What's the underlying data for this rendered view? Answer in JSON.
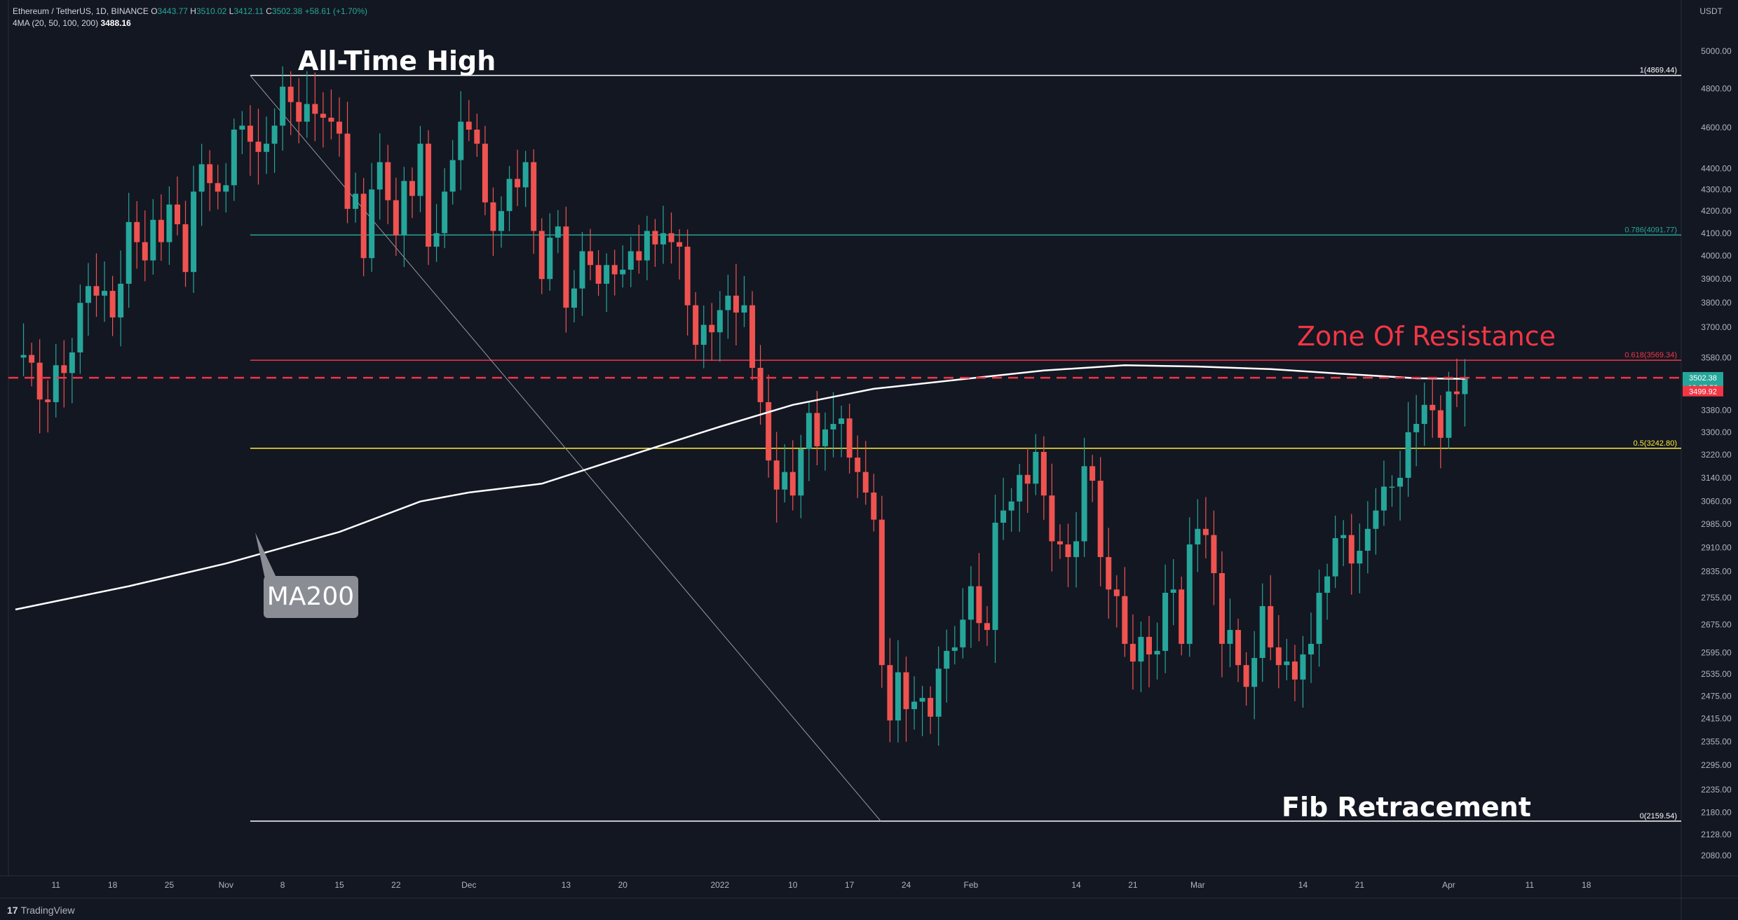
{
  "header": {
    "symbol": "Ethereum / TetherUS, 1D, BINANCE",
    "open_label": "O",
    "open": "3443.77",
    "high_label": "H",
    "high": "3510.02",
    "low_label": "L",
    "low": "3412.11",
    "close_label": "C",
    "close": "3502.38",
    "change": "+58.61 (+1.70%)",
    "ma_label": "4MA (20, 50, 100, 200)",
    "ma_value": "3488.16"
  },
  "currency": "USDT",
  "brand": "TradingView",
  "colors": {
    "background": "#131722",
    "up": "#26a69a",
    "down": "#ef5350",
    "fib_786": "#26a69a",
    "fib_618": "#f23645",
    "fib_5": "#ffeb3b",
    "resistance": "#f23645",
    "ma200": "#ffffff"
  },
  "chart_data": {
    "type": "candlestick",
    "price_scale": "log",
    "ylim": [
      2050,
      5050
    ],
    "y_ticks": [
      2080,
      2128,
      2180,
      2235,
      2295,
      2355,
      2415,
      2475,
      2535,
      2595,
      2675,
      2755,
      2835,
      2910,
      2985,
      3060,
      3140,
      3220,
      3300,
      3380,
      3580,
      3700,
      3800,
      3900,
      4000,
      4100,
      4200,
      4300,
      4400,
      4600,
      4800,
      5000
    ],
    "y_tick_labels": [
      "2080.00",
      "2128.00",
      "2180.00",
      "2235.00",
      "2295.00",
      "2355.00",
      "2415.00",
      "2475.00",
      "2535.00",
      "2595.00",
      "2675.00",
      "2755.00",
      "2835.00",
      "2910.00",
      "2985.00",
      "3060.00",
      "3140.00",
      "3220.00",
      "3300.00",
      "3380.00",
      "3580.00",
      "3700.00",
      "3800.00",
      "3900.00",
      "4000.00",
      "4100.00",
      "4200.00",
      "4300.00",
      "4400.00",
      "4600.00",
      "4800.00",
      "5000.00"
    ],
    "x_range": [
      "2021-10-06",
      "2022-04-22"
    ],
    "x_ticks": [
      {
        "date": "2021-10-11",
        "label": "11"
      },
      {
        "date": "2021-10-18",
        "label": "18"
      },
      {
        "date": "2021-10-25",
        "label": "25"
      },
      {
        "date": "2021-11-01",
        "label": "Nov"
      },
      {
        "date": "2021-11-08",
        "label": "8"
      },
      {
        "date": "2021-11-15",
        "label": "15"
      },
      {
        "date": "2021-11-22",
        "label": "22"
      },
      {
        "date": "2021-12-01",
        "label": "Dec"
      },
      {
        "date": "2021-12-13",
        "label": "13"
      },
      {
        "date": "2021-12-20",
        "label": "20"
      },
      {
        "date": "2022-01-01",
        "label": "2022"
      },
      {
        "date": "2022-01-10",
        "label": "10"
      },
      {
        "date": "2022-01-17",
        "label": "17"
      },
      {
        "date": "2022-01-24",
        "label": "24"
      },
      {
        "date": "2022-02-01",
        "label": "Feb"
      },
      {
        "date": "2022-02-14",
        "label": "14"
      },
      {
        "date": "2022-02-21",
        "label": "21"
      },
      {
        "date": "2022-03-01",
        "label": "Mar"
      },
      {
        "date": "2022-03-14",
        "label": "14"
      },
      {
        "date": "2022-03-21",
        "label": "21"
      },
      {
        "date": "2022-04-01",
        "label": "Apr"
      },
      {
        "date": "2022-04-11",
        "label": "11"
      },
      {
        "date": "2022-04-18",
        "label": "18"
      }
    ],
    "close_series": [
      [
        "2021-10-06",
        3580
      ],
      [
        "2021-10-07",
        3590
      ],
      [
        "2021-10-08",
        3560
      ],
      [
        "2021-10-09",
        3420
      ],
      [
        "2021-10-10",
        3410
      ],
      [
        "2021-10-11",
        3550
      ],
      [
        "2021-10-12",
        3520
      ],
      [
        "2021-10-13",
        3600
      ],
      [
        "2021-10-14",
        3800
      ],
      [
        "2021-10-15",
        3870
      ],
      [
        "2021-10-16",
        3830
      ],
      [
        "2021-10-17",
        3850
      ],
      [
        "2021-10-18",
        3740
      ],
      [
        "2021-10-19",
        3880
      ],
      [
        "2021-10-20",
        4150
      ],
      [
        "2021-10-21",
        4060
      ],
      [
        "2021-10-22",
        3980
      ],
      [
        "2021-10-23",
        4160
      ],
      [
        "2021-10-24",
        4060
      ],
      [
        "2021-10-25",
        4230
      ],
      [
        "2021-10-26",
        4140
      ],
      [
        "2021-10-27",
        3930
      ],
      [
        "2021-10-28",
        4290
      ],
      [
        "2021-10-29",
        4420
      ],
      [
        "2021-10-30",
        4330
      ],
      [
        "2021-10-31",
        4290
      ],
      [
        "2021-11-01",
        4320
      ],
      [
        "2021-11-02",
        4590
      ],
      [
        "2021-11-03",
        4610
      ],
      [
        "2021-11-04",
        4530
      ],
      [
        "2021-11-05",
        4480
      ],
      [
        "2021-11-06",
        4520
      ],
      [
        "2021-11-07",
        4610
      ],
      [
        "2021-11-08",
        4810
      ],
      [
        "2021-11-09",
        4730
      ],
      [
        "2021-11-10",
        4630
      ],
      [
        "2021-11-11",
        4720
      ],
      [
        "2021-11-12",
        4670
      ],
      [
        "2021-11-13",
        4650
      ],
      [
        "2021-11-14",
        4630
      ],
      [
        "2021-11-15",
        4570
      ],
      [
        "2021-11-16",
        4210
      ],
      [
        "2021-11-17",
        4280
      ],
      [
        "2021-11-18",
        3990
      ],
      [
        "2021-11-19",
        4300
      ],
      [
        "2021-11-20",
        4430
      ],
      [
        "2021-11-21",
        4250
      ],
      [
        "2021-11-22",
        4090
      ],
      [
        "2021-11-23",
        4340
      ],
      [
        "2021-11-24",
        4270
      ],
      [
        "2021-11-25",
        4520
      ],
      [
        "2021-11-26",
        4040
      ],
      [
        "2021-11-27",
        4100
      ],
      [
        "2021-11-28",
        4290
      ],
      [
        "2021-11-29",
        4440
      ],
      [
        "2021-11-30",
        4630
      ],
      [
        "2021-12-01",
        4590
      ],
      [
        "2021-12-02",
        4520
      ],
      [
        "2021-12-03",
        4240
      ],
      [
        "2021-12-04",
        4110
      ],
      [
        "2021-12-05",
        4200
      ],
      [
        "2021-12-06",
        4350
      ],
      [
        "2021-12-07",
        4310
      ],
      [
        "2021-12-08",
        4430
      ],
      [
        "2021-12-09",
        4110
      ],
      [
        "2021-12-10",
        3900
      ],
      [
        "2021-12-11",
        4080
      ],
      [
        "2021-12-12",
        4130
      ],
      [
        "2021-12-13",
        3780
      ],
      [
        "2021-12-14",
        3860
      ],
      [
        "2021-12-15",
        4020
      ],
      [
        "2021-12-16",
        3960
      ],
      [
        "2021-12-17",
        3880
      ],
      [
        "2021-12-18",
        3960
      ],
      [
        "2021-12-19",
        3920
      ],
      [
        "2021-12-20",
        3940
      ],
      [
        "2021-12-21",
        4020
      ],
      [
        "2021-12-22",
        3980
      ],
      [
        "2021-12-23",
        4110
      ],
      [
        "2021-12-24",
        4050
      ],
      [
        "2021-12-25",
        4100
      ],
      [
        "2021-12-26",
        4060
      ],
      [
        "2021-12-27",
        4040
      ],
      [
        "2021-12-28",
        3790
      ],
      [
        "2021-12-29",
        3630
      ],
      [
        "2021-12-30",
        3710
      ],
      [
        "2021-12-31",
        3680
      ],
      [
        "2022-01-01",
        3770
      ],
      [
        "2022-01-02",
        3830
      ],
      [
        "2022-01-03",
        3760
      ],
      [
        "2022-01-04",
        3790
      ],
      [
        "2022-01-05",
        3540
      ],
      [
        "2022-01-06",
        3410
      ],
      [
        "2022-01-07",
        3200
      ],
      [
        "2022-01-08",
        3100
      ],
      [
        "2022-01-09",
        3160
      ],
      [
        "2022-01-10",
        3080
      ],
      [
        "2022-01-11",
        3240
      ],
      [
        "2022-01-12",
        3370
      ],
      [
        "2022-01-13",
        3250
      ],
      [
        "2022-01-14",
        3310
      ],
      [
        "2022-01-15",
        3330
      ],
      [
        "2022-01-16",
        3350
      ],
      [
        "2022-01-17",
        3210
      ],
      [
        "2022-01-18",
        3160
      ],
      [
        "2022-01-19",
        3090
      ],
      [
        "2022-01-20",
        3000
      ],
      [
        "2022-01-21",
        2560
      ],
      [
        "2022-01-22",
        2410
      ],
      [
        "2022-01-23",
        2540
      ],
      [
        "2022-01-24",
        2440
      ],
      [
        "2022-01-25",
        2460
      ],
      [
        "2022-01-26",
        2470
      ],
      [
        "2022-01-27",
        2420
      ],
      [
        "2022-01-28",
        2550
      ],
      [
        "2022-01-29",
        2600
      ],
      [
        "2022-01-30",
        2610
      ],
      [
        "2022-01-31",
        2690
      ],
      [
        "2022-02-01",
        2790
      ],
      [
        "2022-02-02",
        2680
      ],
      [
        "2022-02-03",
        2660
      ],
      [
        "2022-02-04",
        2990
      ],
      [
        "2022-02-05",
        3030
      ],
      [
        "2022-02-06",
        3060
      ],
      [
        "2022-02-07",
        3150
      ],
      [
        "2022-02-08",
        3120
      ],
      [
        "2022-02-09",
        3230
      ],
      [
        "2022-02-10",
        3080
      ],
      [
        "2022-02-11",
        2930
      ],
      [
        "2022-02-12",
        2920
      ],
      [
        "2022-02-13",
        2880
      ],
      [
        "2022-02-14",
        2930
      ],
      [
        "2022-02-15",
        3180
      ],
      [
        "2022-02-16",
        3130
      ],
      [
        "2022-02-17",
        2880
      ],
      [
        "2022-02-18",
        2780
      ],
      [
        "2022-02-19",
        2760
      ],
      [
        "2022-02-20",
        2620
      ],
      [
        "2022-02-21",
        2570
      ],
      [
        "2022-02-22",
        2640
      ],
      [
        "2022-02-23",
        2590
      ],
      [
        "2022-02-24",
        2600
      ],
      [
        "2022-02-25",
        2770
      ],
      [
        "2022-02-26",
        2780
      ],
      [
        "2022-02-27",
        2620
      ],
      [
        "2022-02-28",
        2920
      ],
      [
        "2022-03-01",
        2970
      ],
      [
        "2022-03-02",
        2950
      ],
      [
        "2022-03-03",
        2830
      ],
      [
        "2022-03-04",
        2620
      ],
      [
        "2022-03-05",
        2660
      ],
      [
        "2022-03-06",
        2560
      ],
      [
        "2022-03-07",
        2500
      ],
      [
        "2022-03-08",
        2580
      ],
      [
        "2022-03-09",
        2730
      ],
      [
        "2022-03-10",
        2610
      ],
      [
        "2022-03-11",
        2560
      ],
      [
        "2022-03-12",
        2570
      ],
      [
        "2022-03-13",
        2520
      ],
      [
        "2022-03-14",
        2590
      ],
      [
        "2022-03-15",
        2620
      ],
      [
        "2022-03-16",
        2770
      ],
      [
        "2022-03-17",
        2820
      ],
      [
        "2022-03-18",
        2940
      ],
      [
        "2022-03-19",
        2950
      ],
      [
        "2022-03-20",
        2860
      ],
      [
        "2022-03-21",
        2900
      ],
      [
        "2022-03-22",
        2970
      ],
      [
        "2022-03-23",
        3030
      ],
      [
        "2022-03-24",
        3110
      ],
      [
        "2022-03-25",
        3110
      ],
      [
        "2022-03-26",
        3140
      ],
      [
        "2022-03-27",
        3300
      ],
      [
        "2022-03-28",
        3330
      ],
      [
        "2022-03-29",
        3400
      ],
      [
        "2022-03-30",
        3380
      ],
      [
        "2022-03-31",
        3280
      ],
      [
        "2022-04-01",
        3450
      ],
      [
        "2022-04-02",
        3440
      ],
      [
        "2022-04-03",
        3502
      ]
    ],
    "ma200": [
      [
        "2021-10-06",
        2720
      ],
      [
        "2021-10-20",
        2790
      ],
      [
        "2021-11-01",
        2860
      ],
      [
        "2021-11-15",
        2960
      ],
      [
        "2021-11-25",
        3060
      ],
      [
        "2021-12-01",
        3090
      ],
      [
        "2021-12-10",
        3120
      ],
      [
        "2021-12-20",
        3210
      ],
      [
        "2022-01-01",
        3320
      ],
      [
        "2022-01-10",
        3400
      ],
      [
        "2022-01-20",
        3460
      ],
      [
        "2022-02-01",
        3500
      ],
      [
        "2022-02-10",
        3530
      ],
      [
        "2022-02-20",
        3550
      ],
      [
        "2022-03-01",
        3545
      ],
      [
        "2022-03-10",
        3535
      ],
      [
        "2022-03-20",
        3515
      ],
      [
        "2022-03-28",
        3500
      ],
      [
        "2022-04-03",
        3498
      ]
    ],
    "horizontal_levels": [
      {
        "label": "1(4869.44)",
        "price": 4869.44,
        "color": "#ffffff",
        "from": "2021-11-04"
      },
      {
        "label": "0.786(4091.77)",
        "price": 4091.77,
        "color": "#26a69a",
        "from": "2021-11-04"
      },
      {
        "label": "0.618(3569.34)",
        "price": 3569.34,
        "color": "#f23645",
        "from": "2021-11-04"
      },
      {
        "label": "0.5(3242.80)",
        "price": 3242.8,
        "color": "#ffeb3b",
        "from": "2021-11-04"
      },
      {
        "label": "0(2159.54)",
        "price": 2159.54,
        "color": "#ffffff",
        "from": "2021-11-04"
      }
    ],
    "resistance_line": {
      "price": 3502,
      "color": "#f23645",
      "style": "dashed"
    },
    "trend_line": {
      "from": [
        "2021-11-04",
        4869.44
      ],
      "to": [
        "2022-01-20",
        2159.54
      ]
    },
    "price_tags": [
      {
        "value": "3502.38",
        "sub": "10:27:53",
        "color": "#26a69a",
        "price": 3502.38
      },
      {
        "value": "3499.92",
        "color": "#f23645",
        "price": 3450
      }
    ],
    "annotations": [
      {
        "text": "All-Time High",
        "color": "#ffffff"
      },
      {
        "text": "Zone Of Resistance",
        "color": "#f23645"
      },
      {
        "text": "MA200",
        "color": "#ffffff"
      },
      {
        "text": "Fib Retracement",
        "color": "#ffffff"
      }
    ]
  }
}
